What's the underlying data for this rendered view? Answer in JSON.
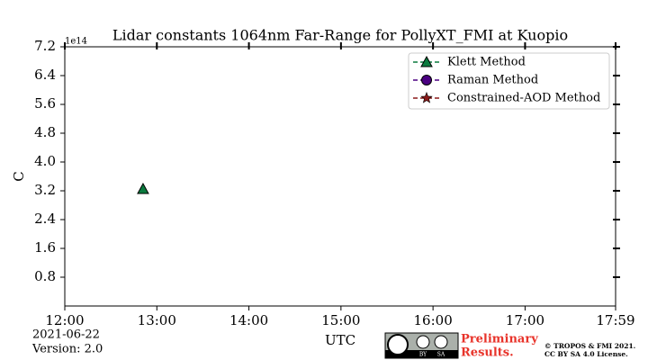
{
  "chart_data": {
    "type": "scatter",
    "title": "Lidar constants 1064nm Far-Range for PollyXT_FMI at Kuopio",
    "x_label": "UTC",
    "y_label": "C",
    "y_offset_text": "1e14",
    "x": [
      12.85
    ],
    "xlim": [
      12,
      17.9833
    ],
    "xticks": [
      {
        "value": 12,
        "label": "12:00"
      },
      {
        "value": 13,
        "label": "13:00"
      },
      {
        "value": 14,
        "label": "14:00"
      },
      {
        "value": 15,
        "label": "15:00"
      },
      {
        "value": 16,
        "label": "16:00"
      },
      {
        "value": 17,
        "label": "17:00"
      },
      {
        "value": 17.9833,
        "label": "17:59"
      }
    ],
    "ylim": [
      0,
      7.2
    ],
    "yticks": [
      0.8,
      1.6,
      2.4,
      3.2,
      {
        "value": 4.0,
        "label": "4.0"
      },
      4.8,
      5.6,
      6.4,
      7.2
    ],
    "legend": "upper right",
    "series": [
      {
        "name": "Klett Method",
        "color": "#0b7a3e",
        "marker": "triangle",
        "values": [
          3.25
        ]
      },
      {
        "name": "Raman Method",
        "color": "#4b0082",
        "marker": "circle",
        "values": [
          null
        ]
      },
      {
        "name": "Constrained-AOD Method",
        "color": "#8b1a1a",
        "marker": "star",
        "values": [
          null
        ]
      }
    ]
  },
  "footer": {
    "date": "2021-06-22",
    "version": "Version: 2.0",
    "status_line1": "Preliminary",
    "status_line2": "Results.",
    "license_badge": [
      "BY",
      "SA"
    ],
    "copyright_line1": "© TROPOS & FMI 2021.",
    "copyright_line2": "CC BY SA 4.0 License."
  }
}
